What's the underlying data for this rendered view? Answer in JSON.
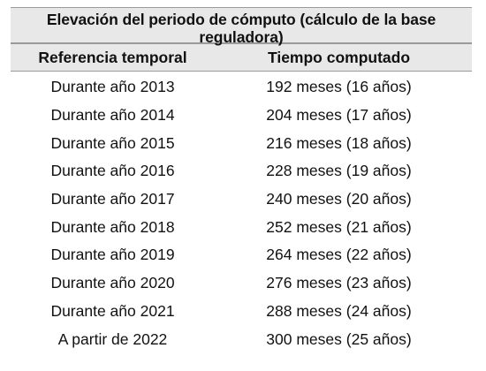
{
  "table": {
    "title": "Elevación del periodo de cómputo (cálculo de la base reguladora)",
    "headers": {
      "reference": "Referencia temporal",
      "computed": "Tiempo computado"
    },
    "rows": [
      {
        "reference": "Durante año 2013",
        "computed": "192 meses (16 años)"
      },
      {
        "reference": "Durante año 2014",
        "computed": "204 meses (17 años)"
      },
      {
        "reference": "Durante año 2015",
        "computed": "216 meses (18 años)"
      },
      {
        "reference": "Durante año 2016",
        "computed": "228 meses (19 años)"
      },
      {
        "reference": "Durante año 2017",
        "computed": "240 meses (20 años)"
      },
      {
        "reference": "Durante año 2018",
        "computed": "252 meses (21 años)"
      },
      {
        "reference": "Durante año 2019",
        "computed": "264 meses (22 años)"
      },
      {
        "reference": "Durante año 2020",
        "computed": "276 meses (23 años)"
      },
      {
        "reference": "Durante año 2021",
        "computed": "288 meses (24 años)"
      },
      {
        "reference": "A partir de 2022",
        "computed": "300 meses (25 años)"
      }
    ]
  }
}
